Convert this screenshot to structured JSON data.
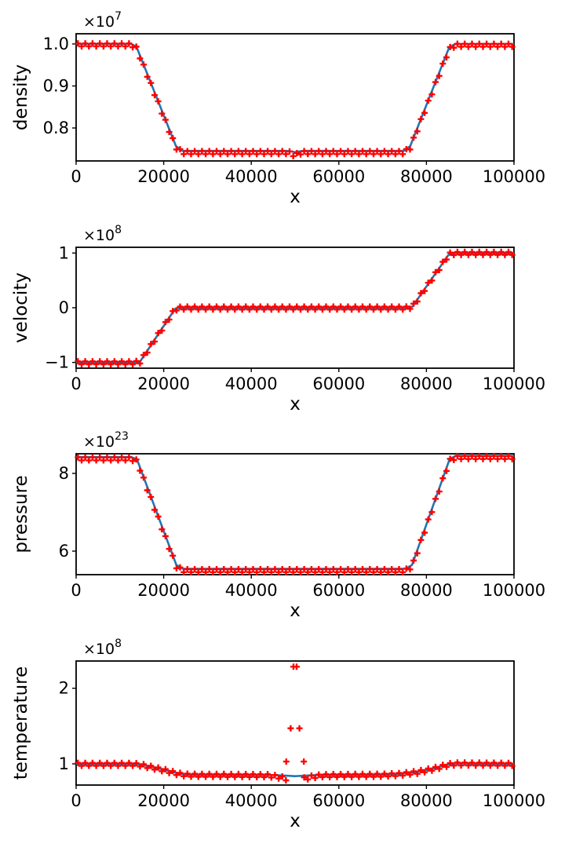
{
  "figure": {
    "background": "#ffffff",
    "line_color": "#1f77b4",
    "marker_color": "#ff0000",
    "axis_color": "#000000",
    "xlabel": "x"
  },
  "chart_data": [
    {
      "type": "line",
      "ylabel": "density",
      "xlabel": "x",
      "offset_text": "×10",
      "offset_exponent": "7",
      "xlim": [
        0,
        100000
      ],
      "ylim": [
        0.7215,
        1.0243
      ],
      "xticks": [
        {
          "v": 0,
          "label": "0"
        },
        {
          "v": 20000,
          "label": "20000"
        },
        {
          "v": 40000,
          "label": "40000"
        },
        {
          "v": 60000,
          "label": "60000"
        },
        {
          "v": 80000,
          "label": "80000"
        },
        {
          "v": 100000,
          "label": "100000"
        }
      ],
      "yticks": [
        {
          "v": 0.8,
          "label": "0.8"
        },
        {
          "v": 0.9,
          "label": "0.9"
        },
        {
          "v": 1.0,
          "label": "1.0"
        }
      ],
      "line_points": [
        [
          0,
          1.0
        ],
        [
          12600,
          1.0
        ],
        [
          13800,
          0.993
        ],
        [
          22800,
          0.757
        ],
        [
          24300,
          0.7455
        ],
        [
          48000,
          0.7455
        ],
        [
          49300,
          0.744
        ],
        [
          50000,
          0.7425
        ],
        [
          50700,
          0.744
        ],
        [
          52000,
          0.7455
        ],
        [
          74800,
          0.7455
        ],
        [
          76300,
          0.757
        ],
        [
          85200,
          0.992
        ],
        [
          86600,
          1.0
        ],
        [
          100000,
          1.0
        ]
      ],
      "marker_count": 120,
      "marker_points": [
        [
          0,
          0.998
        ],
        [
          12600,
          0.998
        ],
        [
          13800,
          0.99
        ],
        [
          22800,
          0.7535
        ],
        [
          24300,
          0.7415
        ],
        [
          48600,
          0.7415
        ],
        [
          49400,
          0.7375
        ],
        [
          50000,
          0.7345
        ],
        [
          50600,
          0.7375
        ],
        [
          51400,
          0.7415
        ],
        [
          74800,
          0.7415
        ],
        [
          76300,
          0.753
        ],
        [
          85200,
          0.988
        ],
        [
          86600,
          0.997
        ],
        [
          100000,
          0.997
        ]
      ]
    },
    {
      "type": "line",
      "ylabel": "velocity",
      "xlabel": "x",
      "offset_text": "×10",
      "offset_exponent": "8",
      "xlim": [
        0,
        100000
      ],
      "ylim": [
        -1.105,
        1.105
      ],
      "xticks": [
        {
          "v": 0,
          "label": "0"
        },
        {
          "v": 20000,
          "label": "20000"
        },
        {
          "v": 40000,
          "label": "40000"
        },
        {
          "v": 60000,
          "label": "60000"
        },
        {
          "v": 80000,
          "label": "80000"
        },
        {
          "v": 100000,
          "label": "100000"
        }
      ],
      "yticks": [
        {
          "v": -1,
          "label": "−1"
        },
        {
          "v": 0,
          "label": "0"
        },
        {
          "v": 1,
          "label": "1"
        }
      ],
      "line_points": [
        [
          0,
          -1.0
        ],
        [
          13200,
          -1.0
        ],
        [
          14600,
          -0.985
        ],
        [
          22600,
          -0.02
        ],
        [
          23900,
          0.0
        ],
        [
          75300,
          0.0
        ],
        [
          76800,
          0.02
        ],
        [
          85200,
          0.985
        ],
        [
          86600,
          1.0
        ],
        [
          100000,
          1.0
        ]
      ],
      "marker_count": 120,
      "marker_points": [
        [
          0,
          -1.005
        ],
        [
          13200,
          -1.005
        ],
        [
          14600,
          -0.99
        ],
        [
          22600,
          -0.025
        ],
        [
          23900,
          -0.004
        ],
        [
          75300,
          -0.004
        ],
        [
          76800,
          0.016
        ],
        [
          85200,
          0.98
        ],
        [
          86600,
          0.995
        ],
        [
          100000,
          0.995
        ]
      ]
    },
    {
      "type": "line",
      "ylabel": "pressure",
      "xlabel": "x",
      "offset_text": "×10",
      "offset_exponent": "23",
      "xlim": [
        0,
        100000
      ],
      "ylim": [
        5.394,
        8.505
      ],
      "xticks": [
        {
          "v": 0,
          "label": "0"
        },
        {
          "v": 20000,
          "label": "20000"
        },
        {
          "v": 40000,
          "label": "40000"
        },
        {
          "v": 60000,
          "label": "60000"
        },
        {
          "v": 80000,
          "label": "80000"
        },
        {
          "v": 100000,
          "label": "100000"
        }
      ],
      "yticks": [
        {
          "v": 6,
          "label": "6"
        },
        {
          "v": 8,
          "label": "8"
        }
      ],
      "line_points": [
        [
          0,
          8.42
        ],
        [
          12600,
          8.42
        ],
        [
          13900,
          8.36
        ],
        [
          22900,
          5.64
        ],
        [
          24400,
          5.545
        ],
        [
          75200,
          5.545
        ],
        [
          76700,
          5.64
        ],
        [
          85300,
          8.37
        ],
        [
          86700,
          8.45
        ],
        [
          100000,
          8.45
        ]
      ],
      "marker_count": 120,
      "marker_points": [
        [
          0,
          8.375
        ],
        [
          12600,
          8.375
        ],
        [
          13900,
          8.315
        ],
        [
          22900,
          5.6
        ],
        [
          24400,
          5.5
        ],
        [
          75200,
          5.5
        ],
        [
          76700,
          5.6
        ],
        [
          85300,
          8.33
        ],
        [
          86700,
          8.41
        ],
        [
          100000,
          8.41
        ]
      ]
    },
    {
      "type": "line",
      "ylabel": "temperature",
      "xlabel": "x",
      "offset_text": "×10",
      "offset_exponent": "8",
      "xlim": [
        0,
        100000
      ],
      "ylim": [
        0.72,
        2.36
      ],
      "xticks": [
        {
          "v": 0,
          "label": "0"
        },
        {
          "v": 20000,
          "label": "20000"
        },
        {
          "v": 40000,
          "label": "40000"
        },
        {
          "v": 60000,
          "label": "60000"
        },
        {
          "v": 80000,
          "label": "80000"
        },
        {
          "v": 100000,
          "label": "100000"
        }
      ],
      "yticks": [
        {
          "v": 1,
          "label": "1"
        },
        {
          "v": 2,
          "label": "2"
        }
      ],
      "line_points": [
        [
          0,
          1.0
        ],
        [
          13000,
          1.0
        ],
        [
          14800,
          0.99
        ],
        [
          20000,
          0.925
        ],
        [
          23500,
          0.872
        ],
        [
          25500,
          0.858
        ],
        [
          45000,
          0.852
        ],
        [
          48000,
          0.843
        ],
        [
          50000,
          0.837
        ],
        [
          52000,
          0.843
        ],
        [
          55000,
          0.852
        ],
        [
          70000,
          0.857
        ],
        [
          74000,
          0.868
        ],
        [
          78000,
          0.895
        ],
        [
          82000,
          0.945
        ],
        [
          85000,
          0.993
        ],
        [
          86500,
          1.006
        ],
        [
          89500,
          1.005
        ],
        [
          93000,
          1.0
        ],
        [
          100000,
          1.0
        ]
      ],
      "marker_count": 120,
      "marker_points": [
        [
          0,
          0.995
        ],
        [
          13000,
          0.995
        ],
        [
          14800,
          0.985
        ],
        [
          20000,
          0.918
        ],
        [
          23500,
          0.865
        ],
        [
          25500,
          0.851
        ],
        [
          44000,
          0.845
        ],
        [
          46000,
          0.83
        ],
        [
          47300,
          0.812
        ],
        [
          48100,
          0.8
        ],
        [
          51900,
          0.8
        ],
        [
          52700,
          0.812
        ],
        [
          54000,
          0.83
        ],
        [
          56000,
          0.845
        ],
        [
          70000,
          0.851
        ],
        [
          74000,
          0.862
        ],
        [
          78000,
          0.89
        ],
        [
          82000,
          0.94
        ],
        [
          85000,
          0.988
        ],
        [
          86500,
          1.0
        ],
        [
          100000,
          0.995
        ]
      ],
      "marker_gap": [
        48200,
        51800
      ],
      "extra_markers": [
        [
          48000,
          1.03
        ],
        [
          52000,
          1.03
        ],
        [
          49000,
          1.47
        ],
        [
          51000,
          1.47
        ],
        [
          49650,
          2.285
        ],
        [
          50350,
          2.285
        ]
      ]
    }
  ]
}
